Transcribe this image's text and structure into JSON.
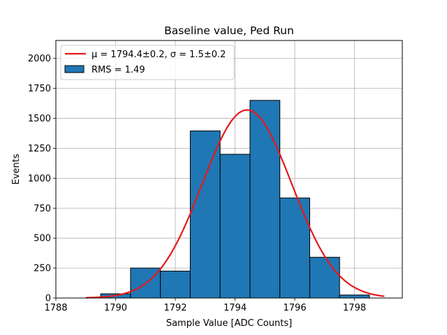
{
  "chart_data": {
    "type": "bar",
    "title": "Baseline value, Ped Run",
    "xlabel": "Sample Value [ADC Counts]",
    "ylabel": "Events",
    "xlim": [
      1788,
      1799.6
    ],
    "ylim": [
      0,
      2150
    ],
    "xticks": [
      1788,
      1790,
      1792,
      1794,
      1796,
      1798
    ],
    "yticks": [
      0,
      250,
      500,
      750,
      1000,
      1250,
      1500,
      1750,
      2000
    ],
    "grid": true,
    "legend_position": "top-left",
    "bar_color": "#1f77b4",
    "fit_color": "#e41a1c",
    "histogram": {
      "name": "RMS = 1.49",
      "bins": [
        {
          "x0": 1789.5,
          "x1": 1790.5,
          "count": 35
        },
        {
          "x0": 1790.5,
          "x1": 1791.5,
          "count": 250
        },
        {
          "x0": 1791.5,
          "x1": 1792.5,
          "count": 225
        },
        {
          "x0": 1792.5,
          "x1": 1793.5,
          "count": 1395
        },
        {
          "x0": 1793.5,
          "x1": 1794.5,
          "count": 1200
        },
        {
          "x0": 1794.5,
          "x1": 1795.5,
          "count": 1650
        },
        {
          "x0": 1795.5,
          "x1": 1796.5,
          "count": 835
        },
        {
          "x0": 1796.5,
          "x1": 1797.5,
          "count": 340
        },
        {
          "x0": 1797.5,
          "x1": 1798.5,
          "count": 25
        }
      ]
    },
    "fit": {
      "name": "μ = 1794.4±0.2, σ = 1.5±0.2",
      "mu": 1794.4,
      "sigma": 1.5,
      "amplitude": 1570,
      "range": [
        1789,
        1799
      ]
    }
  }
}
